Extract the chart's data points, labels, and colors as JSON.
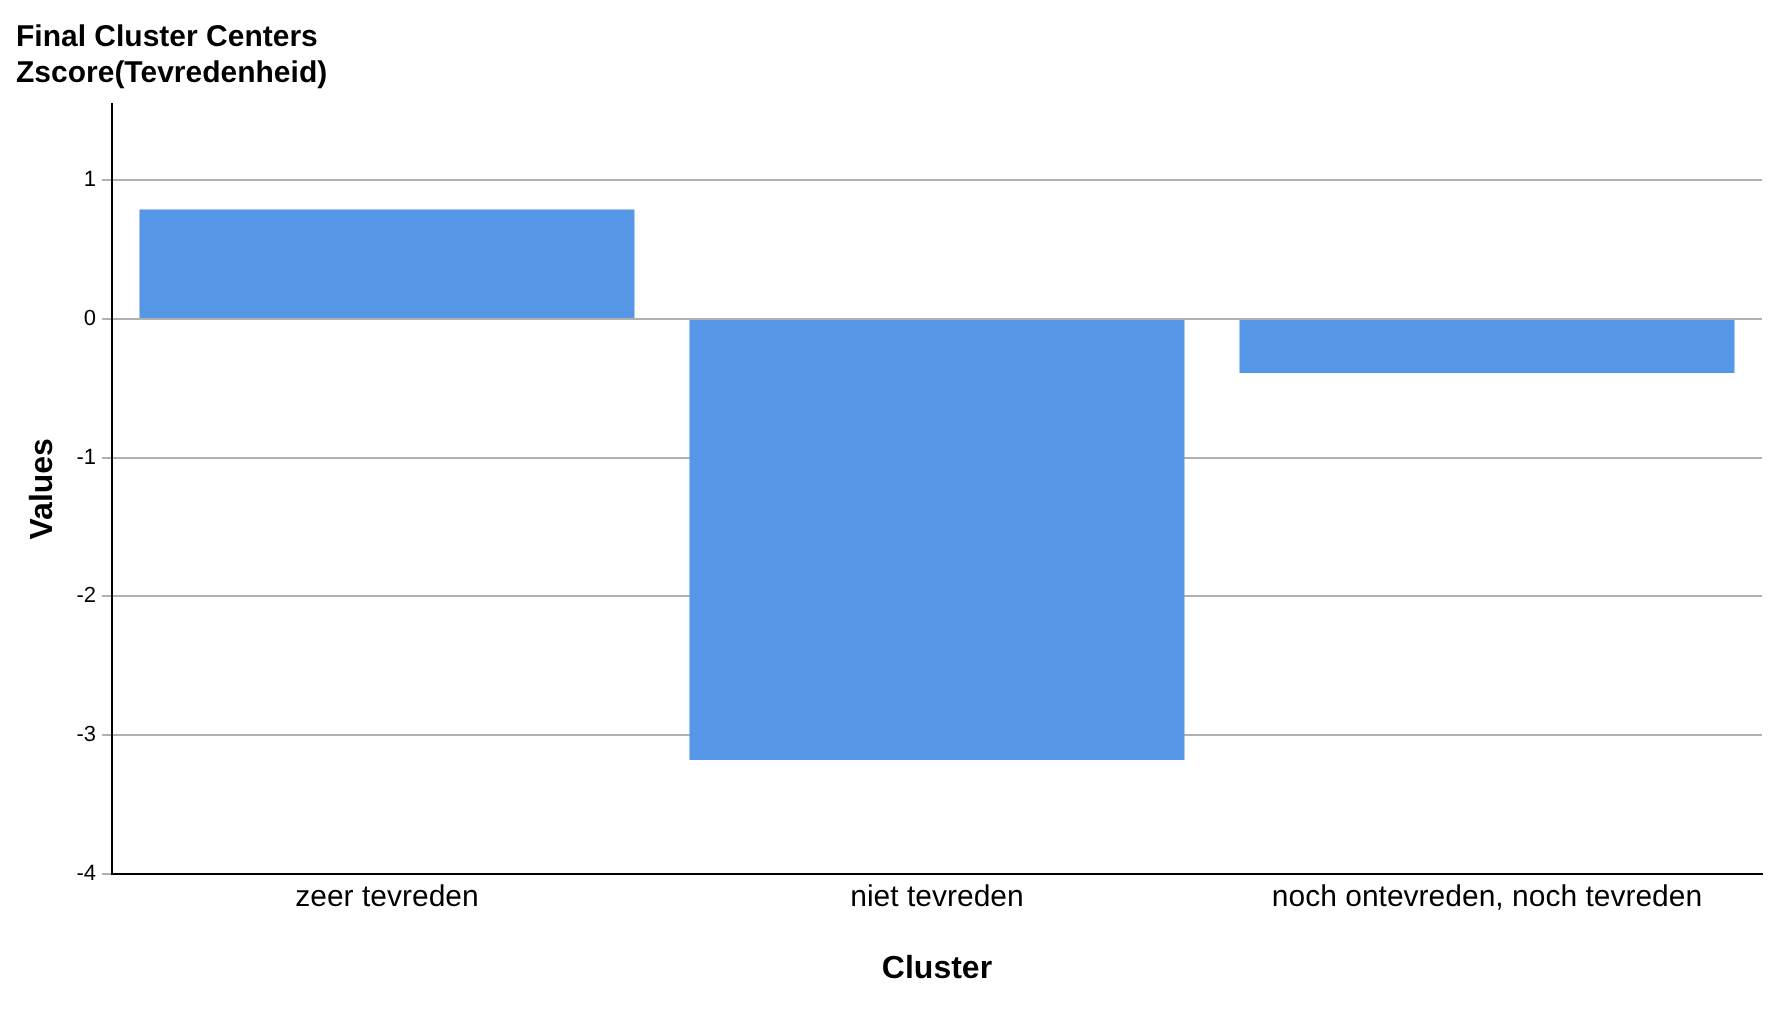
{
  "chart_data": {
    "type": "bar",
    "title": "Final Cluster Centers",
    "subtitle": "Zscore(Tevredenheid)",
    "xlabel": "Cluster",
    "ylabel": "Values",
    "categories": [
      "zeer tevreden",
      "niet tevreden",
      "noch ontevreden, noch tevreden"
    ],
    "values": [
      0.79,
      -3.18,
      -0.39
    ],
    "color": "#5596e6",
    "ylim": [
      -4,
      1.55
    ],
    "yticks": [
      -4,
      -3,
      -2,
      -1,
      0,
      1
    ],
    "grid": "y",
    "legend": false
  }
}
